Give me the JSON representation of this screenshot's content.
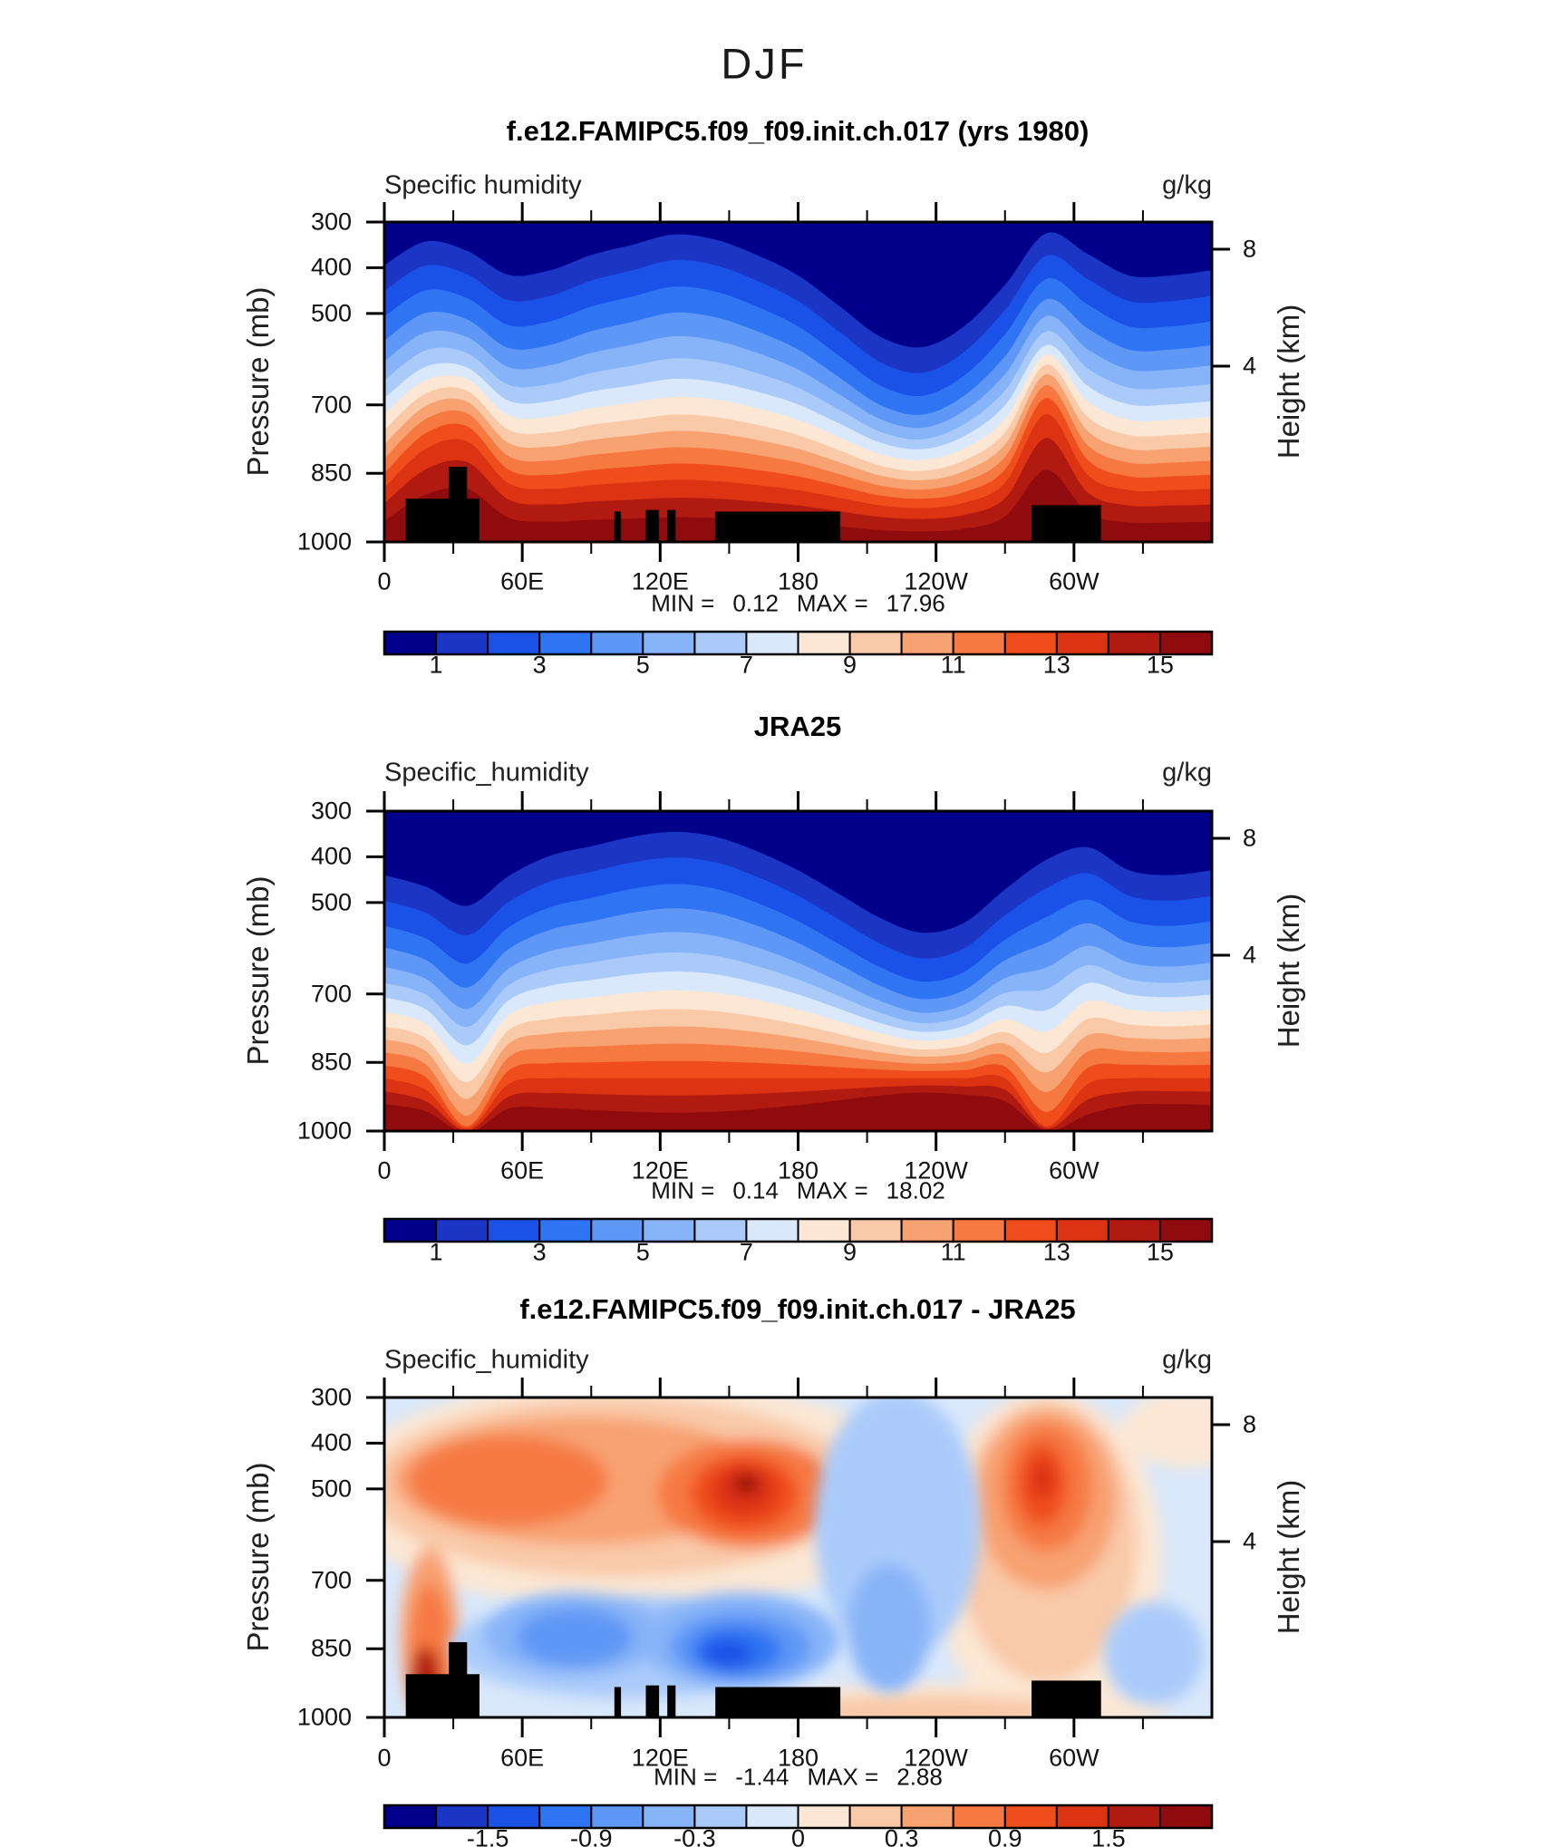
{
  "header": {
    "season": "DJF"
  },
  "axes": {
    "x_major": [
      "0",
      "60E",
      "120E",
      "180",
      "120W",
      "60W"
    ],
    "pressure_ticks": [
      "300",
      "400",
      "500",
      "700",
      "850",
      "1000"
    ],
    "height_ticks": [
      "8",
      "4"
    ],
    "ylabel_left": "Pressure (mb)",
    "ylabel_right": "Height (km)"
  },
  "panels": [
    {
      "title": "f.e12.FAMIPC5.f09_f09.init.ch.017 (yrs 1980)",
      "field_label": "Specific humidity",
      "units": "g/kg",
      "min_label": "MIN =",
      "min_value": "0.12",
      "max_label": "MAX =",
      "max_value": "17.96",
      "colorbar_labels": [
        "1",
        "3",
        "5",
        "7",
        "9",
        "11",
        "13",
        "15"
      ]
    },
    {
      "title": "JRA25",
      "field_label": "Specific_humidity",
      "units": "g/kg",
      "min_label": "MIN =",
      "min_value": "0.14",
      "max_label": "MAX =",
      "max_value": "18.02",
      "colorbar_labels": [
        "1",
        "3",
        "5",
        "7",
        "9",
        "11",
        "13",
        "15"
      ]
    },
    {
      "title": "f.e12.FAMIPC5.f09_f09.init.ch.017 - JRA25",
      "field_label": "Specific_humidity",
      "units": "g/kg",
      "min_label": "MIN =",
      "min_value": "-1.44",
      "max_label": "MAX =",
      "max_value": "2.88",
      "colorbar_labels": [
        "-1.5",
        "-0.9",
        "-0.3",
        "0",
        "0.3",
        "0.9",
        "1.5"
      ]
    }
  ],
  "chart_data": {
    "type": "heatmap",
    "description": "Zonal longitude-pressure cross sections of DJF specific humidity: model, JRA25 reanalysis, and model-minus-reanalysis difference.",
    "units": "g/kg",
    "x_axis": {
      "range_deg": [
        0,
        360
      ],
      "major_ticks": [
        "0",
        "60E",
        "120E",
        "180",
        "120W",
        "60W"
      ],
      "minor_interval_deg": 30
    },
    "y_axis_left": {
      "label": "Pressure (mb)",
      "ticks": [
        300,
        400,
        500,
        700,
        850,
        1000
      ],
      "range": [
        300,
        1000
      ]
    },
    "y_axis_right": {
      "label": "Height (km)",
      "ticks": [
        8,
        4
      ]
    },
    "colors": [
      "#00008B",
      "#1B35C4",
      "#1A52E8",
      "#2F74F2",
      "#5E97F6",
      "#87B4F8",
      "#AACBFA",
      "#D9E8FB",
      "#FBE7D4",
      "#F9C9A8",
      "#F8A171",
      "#F67942",
      "#EF4E1C",
      "#DC3312",
      "#B11A10",
      "#8F0B0D"
    ],
    "colorbar_values_abs": [
      1,
      3,
      5,
      7,
      9,
      11,
      13,
      15
    ],
    "colorbar_values_diff": [
      -1.5,
      -0.9,
      -0.3,
      0,
      0.3,
      0.9,
      1.5
    ],
    "stats": {
      "model": {
        "min": 0.12,
        "max": 17.96
      },
      "jra25": {
        "min": 0.14,
        "max": 18.02
      },
      "diff": {
        "min": -1.44,
        "max": 2.88
      }
    },
    "panel_fields": [
      {
        "kind": "bands",
        "profileA": [
          0.0,
          -0.04,
          -0.02,
          0.02,
          0.01,
          -0.02,
          -0.04,
          -0.06,
          -0.05,
          -0.02,
          0.02,
          0.08,
          0.14,
          0.16,
          0.12,
          0.04,
          -0.05,
          -0.02,
          0.02,
          0.02,
          0.01
        ],
        "profileB": [
          0,
          -0.1,
          -0.13,
          -0.02,
          0,
          0,
          0,
          0,
          0,
          0,
          0,
          0,
          0,
          0,
          0,
          -0.03,
          -0.2,
          -0.03,
          0,
          0,
          0
        ],
        "boundaries": [
          [
            0.135,
            1.6,
            0.1
          ],
          [
            0.215,
            1.6,
            0.15
          ],
          [
            0.295,
            1.55,
            0.2
          ],
          [
            0.37,
            1.45,
            0.28
          ],
          [
            0.435,
            1.3,
            0.38
          ],
          [
            0.495,
            1.15,
            0.48
          ],
          [
            0.55,
            1.0,
            0.58
          ],
          [
            0.6,
            0.9,
            0.7
          ],
          [
            0.65,
            0.8,
            0.82
          ],
          [
            0.695,
            0.7,
            0.92
          ],
          [
            0.74,
            0.6,
            1.0
          ],
          [
            0.785,
            0.5,
            1.05
          ],
          [
            0.83,
            0.4,
            1.05
          ],
          [
            0.88,
            0.3,
            0.95
          ],
          [
            0.935,
            0.2,
            0.75
          ]
        ],
        "topo": [
          [
            0.026,
            0.115,
            0.135
          ],
          [
            0.078,
            0.1,
            0.235
          ],
          [
            0.278,
            0.286,
            0.095
          ],
          [
            0.316,
            0.332,
            0.1
          ],
          [
            0.342,
            0.352,
            0.1
          ],
          [
            0.4,
            0.551,
            0.095
          ],
          [
            0.782,
            0.866,
            0.115
          ]
        ]
      },
      {
        "kind": "bands",
        "profileA": [
          0.03,
          0.05,
          0.07,
          0.03,
          -0.01,
          -0.03,
          -0.05,
          -0.06,
          -0.05,
          -0.02,
          0.02,
          0.07,
          0.12,
          0.15,
          0.13,
          0.06,
          -0.02,
          -0.03,
          0.02,
          0.03,
          0.02
        ],
        "profileB": [
          0,
          0.02,
          0.12,
          0.01,
          0,
          0,
          0,
          0,
          0,
          0,
          0,
          0,
          0,
          0,
          0,
          0,
          0.09,
          0.01,
          0,
          0,
          0
        ],
        "boundaries": [
          [
            0.155,
            1.5,
            0.3
          ],
          [
            0.235,
            1.5,
            0.4
          ],
          [
            0.315,
            1.45,
            0.5
          ],
          [
            0.385,
            1.35,
            0.6
          ],
          [
            0.45,
            1.2,
            0.7
          ],
          [
            0.505,
            1.05,
            0.8
          ],
          [
            0.555,
            0.9,
            0.95
          ],
          [
            0.605,
            0.75,
            1.1
          ],
          [
            0.655,
            0.6,
            1.25
          ],
          [
            0.7,
            0.45,
            1.4
          ],
          [
            0.745,
            0.3,
            1.55
          ],
          [
            0.79,
            0.15,
            1.7
          ],
          [
            0.835,
            0.0,
            1.8
          ],
          [
            0.88,
            -0.15,
            1.7
          ],
          [
            0.925,
            -0.3,
            1.4
          ]
        ],
        "topo": []
      },
      {
        "kind": "blobs",
        "background_color_index": 7,
        "blobs_under": [
          [
            8,
            0.3,
            0.3,
            0.36,
            0.36
          ],
          [
            8,
            0.8,
            0.5,
            0.14,
            0.52
          ],
          [
            8,
            0.97,
            0.1,
            0.08,
            0.12
          ],
          [
            8,
            0.7,
            0.97,
            0.25,
            0.08
          ],
          [
            9,
            0.28,
            0.28,
            0.3,
            0.28
          ],
          [
            9,
            0.8,
            0.45,
            0.11,
            0.44
          ],
          [
            9,
            0.66,
            0.98,
            0.18,
            0.05
          ],
          [
            10,
            0.24,
            0.26,
            0.23,
            0.2
          ],
          [
            10,
            0.8,
            0.32,
            0.085,
            0.28
          ],
          [
            10,
            0.055,
            0.75,
            0.035,
            0.28
          ],
          [
            11,
            0.15,
            0.26,
            0.12,
            0.14
          ],
          [
            11,
            0.44,
            0.3,
            0.11,
            0.17
          ],
          [
            11,
            0.8,
            0.28,
            0.055,
            0.2
          ],
          [
            11,
            0.055,
            0.8,
            0.025,
            0.22
          ],
          [
            12,
            0.435,
            0.3,
            0.065,
            0.12
          ],
          [
            12,
            0.795,
            0.27,
            0.03,
            0.13
          ],
          [
            13,
            0.435,
            0.29,
            0.04,
            0.08
          ],
          [
            13,
            0.795,
            0.255,
            0.015,
            0.06
          ],
          [
            14,
            0.05,
            0.88,
            0.018,
            0.1
          ],
          [
            15,
            0.437,
            0.27,
            0.015,
            0.03
          ]
        ],
        "blobs_over": [
          [
            6,
            0.62,
            0.4,
            0.1,
            0.42
          ],
          [
            6,
            0.3,
            0.78,
            0.22,
            0.16
          ],
          [
            6,
            0.93,
            0.8,
            0.06,
            0.16
          ],
          [
            5,
            0.23,
            0.74,
            0.11,
            0.13
          ],
          [
            5,
            0.43,
            0.76,
            0.12,
            0.15
          ],
          [
            5,
            0.61,
            0.72,
            0.05,
            0.2
          ],
          [
            4,
            0.23,
            0.75,
            0.07,
            0.09
          ],
          [
            4,
            0.43,
            0.78,
            0.085,
            0.11
          ],
          [
            3,
            0.425,
            0.79,
            0.055,
            0.075
          ],
          [
            2,
            0.415,
            0.8,
            0.03,
            0.045
          ]
        ],
        "topo": [
          [
            0.026,
            0.115,
            0.135
          ],
          [
            0.078,
            0.1,
            0.235
          ],
          [
            0.278,
            0.286,
            0.095
          ],
          [
            0.316,
            0.332,
            0.1
          ],
          [
            0.342,
            0.352,
            0.1
          ],
          [
            0.4,
            0.551,
            0.095
          ],
          [
            0.782,
            0.866,
            0.115
          ]
        ]
      }
    ]
  }
}
